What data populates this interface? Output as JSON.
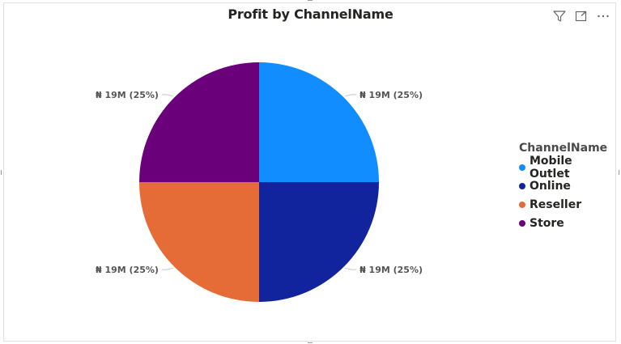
{
  "chart_data": {
    "type": "pie",
    "title": "Profit by ChannelName",
    "categories": [
      "Mobile Outlet",
      "Online",
      "Reseller",
      "Store"
    ],
    "values": [
      19,
      19,
      19,
      19
    ],
    "unit": "M",
    "currency_symbol": "₦",
    "data_labels": [
      "₦ 19M (25%)",
      "₦ 19M (25%)",
      "₦ 19M (25%)",
      "₦ 19M (25%)"
    ],
    "colors": [
      "#118DFF",
      "#12239E",
      "#E66C37",
      "#6B007B"
    ],
    "legend": {
      "title": "ChannelName",
      "placement": "right",
      "items": [
        "Mobile Outlet",
        "Online",
        "Reseller",
        "Store"
      ]
    }
  },
  "toolbar": {
    "icons": [
      "filter-icon",
      "focus-mode-icon",
      "more-options-icon"
    ]
  }
}
